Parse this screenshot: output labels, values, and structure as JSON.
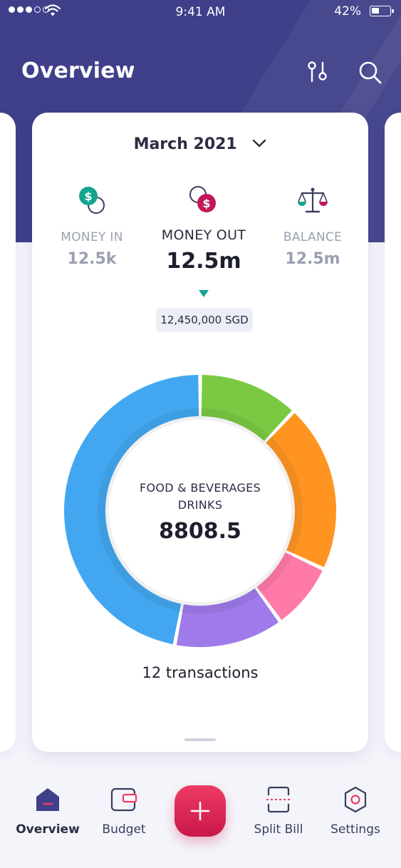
{
  "status_bar": {
    "time": "9:41 AM",
    "battery": "42%"
  },
  "header": {
    "title": "Overview",
    "filter_icon": "filter-icon",
    "search_icon": "search-icon"
  },
  "card": {
    "month": "March 2021",
    "stats": [
      {
        "label": "MONEY IN",
        "value": "12.5k",
        "icon": "money-in-icon"
      },
      {
        "label": "MONEY OUT",
        "value": "12.5m",
        "icon": "money-out-icon"
      },
      {
        "label": "BALANCE",
        "value": "12.5m",
        "icon": "balance-scale-icon"
      }
    ],
    "exact_amount": "12,450,000 SGD",
    "center_label_1": "FOOD & BEVERAGES",
    "center_label_2": "DRINKS",
    "center_value": "8808.5",
    "transactions": "12 transactions"
  },
  "chart_data": {
    "type": "pie",
    "values": [
      12,
      20,
      8,
      13,
      47
    ],
    "colors": [
      "#7ac943",
      "#ff9421",
      "#ff7aa8",
      "#9f7aea",
      "#42a7f0"
    ],
    "selected_index": 4
  },
  "colors": {
    "header": "#3f3f8a",
    "accent": "#e6285a",
    "money_in": "#14a58f",
    "money_out": "#c2185b"
  },
  "tabbar": {
    "items": [
      {
        "label": "Overview",
        "icon": "home-icon"
      },
      {
        "label": "Budget",
        "icon": "wallet-icon"
      },
      {
        "label": "Split Bill",
        "icon": "split-bill-icon"
      },
      {
        "label": "Settings",
        "icon": "settings-icon"
      }
    ],
    "fab_icon": "plus-icon"
  }
}
